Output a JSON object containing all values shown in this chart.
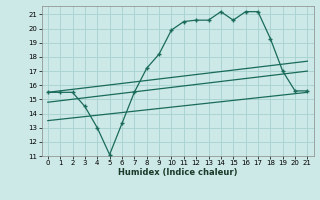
{
  "title": "",
  "xlabel": "Humidex (Indice chaleur)",
  "background_color": "#cce9e7",
  "grid_color": "#aad4d2",
  "line_color": "#1a6b5a",
  "xlim": [
    -0.5,
    21.5
  ],
  "ylim": [
    11,
    21.6
  ],
  "yticks": [
    11,
    12,
    13,
    14,
    15,
    16,
    17,
    18,
    19,
    20,
    21
  ],
  "xticks": [
    0,
    1,
    2,
    3,
    4,
    5,
    6,
    7,
    8,
    9,
    10,
    11,
    12,
    13,
    14,
    15,
    16,
    17,
    18,
    19,
    20,
    21
  ],
  "series1_x": [
    0,
    1,
    2,
    3,
    4,
    5,
    6,
    7,
    8,
    9,
    10,
    11,
    12,
    13,
    14,
    15,
    16,
    17,
    18,
    19,
    20,
    21
  ],
  "series1_y": [
    15.5,
    15.5,
    15.5,
    14.5,
    13.0,
    11.1,
    13.3,
    15.5,
    17.2,
    18.2,
    19.9,
    20.5,
    20.6,
    20.6,
    21.2,
    20.6,
    21.2,
    21.2,
    19.3,
    17.0,
    15.6,
    15.6
  ],
  "series2_x": [
    0,
    21
  ],
  "series2_y": [
    15.5,
    17.7
  ],
  "series3_x": [
    0,
    21
  ],
  "series3_y": [
    14.8,
    17.0
  ],
  "series4_x": [
    0,
    21
  ],
  "series4_y": [
    13.5,
    15.5
  ]
}
